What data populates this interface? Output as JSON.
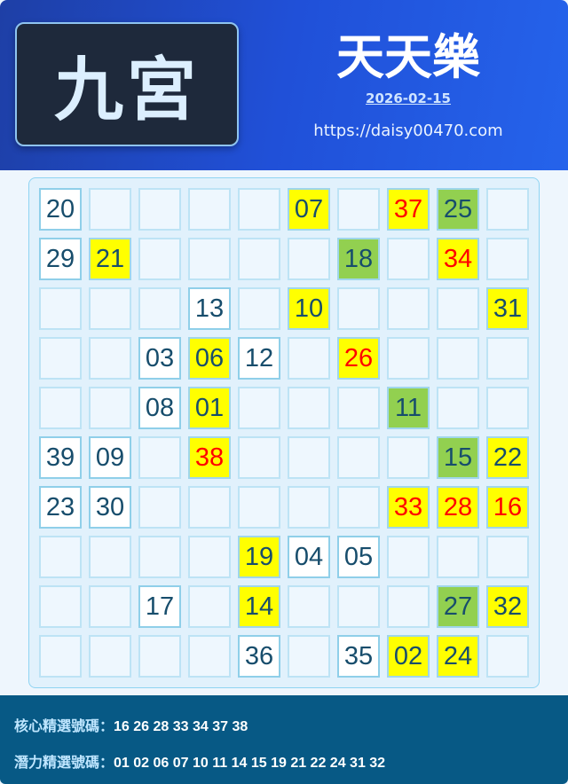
{
  "header": {
    "badge": "九宮",
    "title": "天天樂",
    "date": "2026-02-15",
    "site": "https://daisy00470.com"
  },
  "colors": {
    "yellow": "#ffff00",
    "green": "#92d050",
    "red_text": "#ff0000",
    "number_text": "#174d6c"
  },
  "grid": [
    [
      {
        "v": "20",
        "s": "white"
      },
      {},
      {},
      {},
      {},
      {
        "v": "07",
        "s": "yellow"
      },
      {},
      {
        "v": "37",
        "s": "yellow",
        "red": true
      },
      {
        "v": "25",
        "s": "green"
      },
      {}
    ],
    [
      {
        "v": "29",
        "s": "white"
      },
      {
        "v": "21",
        "s": "yellow"
      },
      {},
      {},
      {},
      {},
      {
        "v": "18",
        "s": "green"
      },
      {},
      {
        "v": "34",
        "s": "yellow",
        "red": true
      },
      {}
    ],
    [
      {},
      {},
      {},
      {
        "v": "13",
        "s": "white"
      },
      {},
      {
        "v": "10",
        "s": "yellow"
      },
      {},
      {},
      {},
      {
        "v": "31",
        "s": "yellow"
      }
    ],
    [
      {},
      {},
      {
        "v": "03",
        "s": "white"
      },
      {
        "v": "06",
        "s": "yellow"
      },
      {
        "v": "12",
        "s": "white"
      },
      {},
      {
        "v": "26",
        "s": "yellow",
        "red": true
      },
      {},
      {},
      {}
    ],
    [
      {},
      {},
      {
        "v": "08",
        "s": "white"
      },
      {
        "v": "01",
        "s": "yellow"
      },
      {},
      {},
      {},
      {
        "v": "11",
        "s": "green"
      },
      {},
      {}
    ],
    [
      {
        "v": "39",
        "s": "white"
      },
      {
        "v": "09",
        "s": "white"
      },
      {},
      {
        "v": "38",
        "s": "yellow",
        "red": true
      },
      {},
      {},
      {},
      {},
      {
        "v": "15",
        "s": "green"
      },
      {
        "v": "22",
        "s": "yellow"
      }
    ],
    [
      {
        "v": "23",
        "s": "white"
      },
      {
        "v": "30",
        "s": "white"
      },
      {},
      {},
      {},
      {},
      {},
      {
        "v": "33",
        "s": "yellow",
        "red": true
      },
      {
        "v": "28",
        "s": "yellow",
        "red": true
      },
      {
        "v": "16",
        "s": "yellow",
        "red": true
      }
    ],
    [
      {},
      {},
      {},
      {},
      {
        "v": "19",
        "s": "yellow"
      },
      {
        "v": "04",
        "s": "white"
      },
      {
        "v": "05",
        "s": "white"
      },
      {},
      {},
      {}
    ],
    [
      {},
      {},
      {
        "v": "17",
        "s": "white"
      },
      {},
      {
        "v": "14",
        "s": "yellow"
      },
      {},
      {},
      {},
      {
        "v": "27",
        "s": "green"
      },
      {
        "v": "32",
        "s": "yellow"
      }
    ],
    [
      {},
      {},
      {},
      {},
      {
        "v": "36",
        "s": "white"
      },
      {},
      {
        "v": "35",
        "s": "white"
      },
      {
        "v": "02",
        "s": "yellow"
      },
      {
        "v": "24",
        "s": "yellow"
      },
      {}
    ]
  ],
  "footer": {
    "core_label": "核心精選號碼：",
    "core_numbers": "16 26 28 33 34 37 38",
    "potential_label": "潛力精選號碼：",
    "potential_numbers": "01 02 06 07 10 11 14 15 19 21 22 24 31 32"
  }
}
